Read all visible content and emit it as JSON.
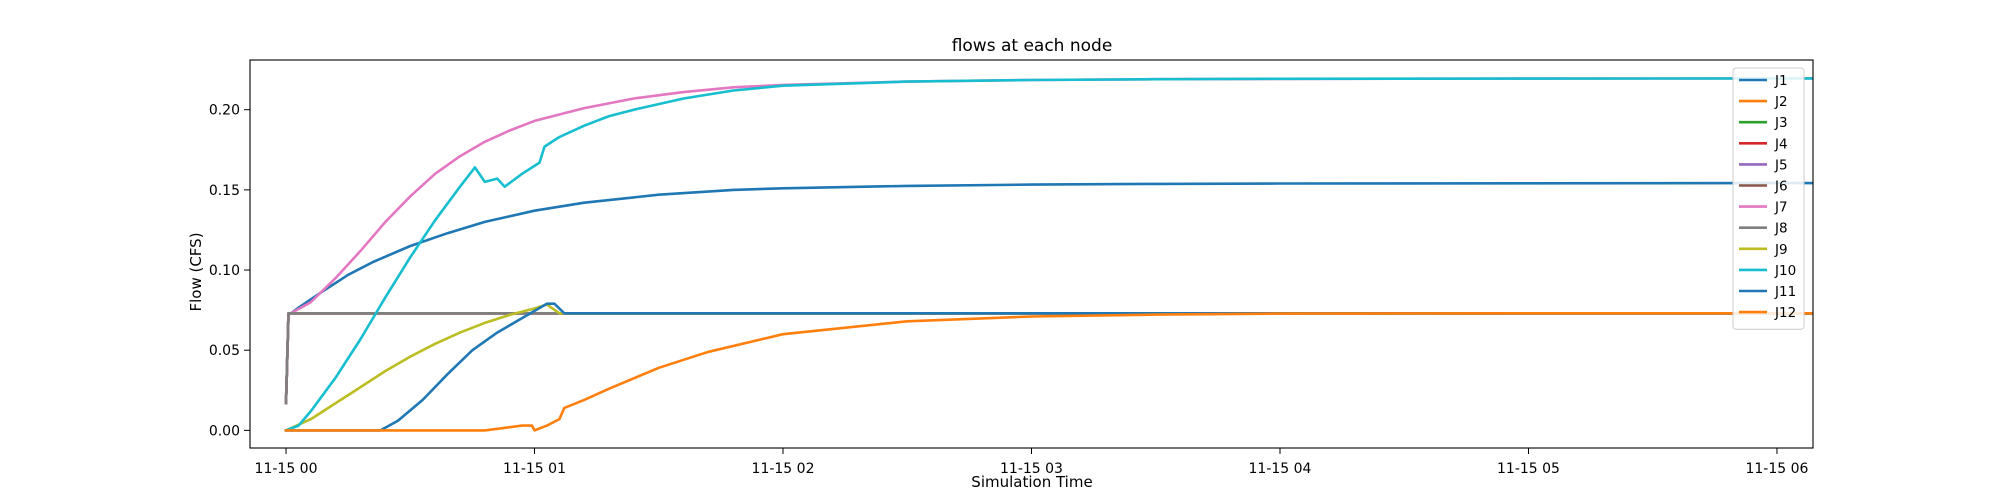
{
  "chart_data": {
    "type": "line",
    "title": "flows at each node",
    "xlabel": "Simulation Time",
    "ylabel": "Flow (CFS)",
    "x_unit": "hours after 11-15 00:00",
    "xlim": [
      -0.145,
      6.145
    ],
    "ylim": [
      -0.011,
      0.231
    ],
    "x_ticks": [
      {
        "value": 0,
        "label": "11-15 00"
      },
      {
        "value": 1,
        "label": "11-15 01"
      },
      {
        "value": 2,
        "label": "11-15 02"
      },
      {
        "value": 3,
        "label": "11-15 03"
      },
      {
        "value": 4,
        "label": "11-15 04"
      },
      {
        "value": 5,
        "label": "11-15 05"
      },
      {
        "value": 6,
        "label": "11-15 06"
      }
    ],
    "y_ticks": [
      {
        "value": 0.0,
        "label": "0.00"
      },
      {
        "value": 0.05,
        "label": "0.05"
      },
      {
        "value": 0.1,
        "label": "0.10"
      },
      {
        "value": 0.15,
        "label": "0.15"
      },
      {
        "value": 0.2,
        "label": "0.20"
      }
    ],
    "grid": false,
    "legend_position": "top-right",
    "series": [
      {
        "name": "J1",
        "color": "#1f77b4",
        "x": [
          0,
          0.01,
          0.02,
          0.05,
          0.15,
          0.25,
          0.35,
          0.5,
          0.65,
          0.8,
          1.0,
          1.2,
          1.5,
          1.8,
          2.0,
          2.5,
          3.0,
          3.5,
          4.0,
          5.0,
          6.0,
          6.145
        ],
        "y": [
          0.017,
          0.073,
          0.073,
          0.0765,
          0.087,
          0.097,
          0.105,
          0.115,
          0.123,
          0.13,
          0.137,
          0.142,
          0.147,
          0.15,
          0.151,
          0.1525,
          0.1533,
          0.1537,
          0.154,
          0.1541,
          0.1542,
          0.1542
        ]
      },
      {
        "name": "J2",
        "color": "#ff7f0e",
        "x": [
          0,
          0.01,
          0.02,
          6.145
        ],
        "y": [
          0.017,
          0.073,
          0.073,
          0.073
        ]
      },
      {
        "name": "J3",
        "color": "#2ca02c",
        "x": [
          0,
          0.01,
          0.02,
          6.145
        ],
        "y": [
          0.017,
          0.073,
          0.073,
          0.073
        ]
      },
      {
        "name": "J4",
        "color": "#d62728",
        "x": [
          0,
          0.01,
          0.02,
          6.145
        ],
        "y": [
          0.017,
          0.073,
          0.073,
          0.073
        ]
      },
      {
        "name": "J5",
        "color": "#9467bd",
        "x": [
          0,
          0.01,
          0.02,
          6.145
        ],
        "y": [
          0.017,
          0.073,
          0.073,
          0.073
        ]
      },
      {
        "name": "J6",
        "color": "#8c564b",
        "x": [
          0,
          0.01,
          0.02,
          6.145
        ],
        "y": [
          0.017,
          0.073,
          0.073,
          0.073
        ]
      },
      {
        "name": "J7",
        "color": "#e377c2",
        "x": [
          0,
          0.01,
          0.02,
          0.1,
          0.2,
          0.3,
          0.4,
          0.5,
          0.6,
          0.7,
          0.8,
          0.9,
          1.0,
          1.2,
          1.4,
          1.6,
          1.8,
          2.0,
          2.5,
          3.0,
          3.5,
          4.0,
          5.0,
          6.0,
          6.145
        ],
        "y": [
          0.017,
          0.073,
          0.073,
          0.08,
          0.095,
          0.112,
          0.13,
          0.146,
          0.16,
          0.171,
          0.18,
          0.187,
          0.193,
          0.201,
          0.207,
          0.211,
          0.214,
          0.2155,
          0.2175,
          0.2185,
          0.219,
          0.2192,
          0.2194,
          0.2195,
          0.2195
        ]
      },
      {
        "name": "J8",
        "color": "#7f7f7f",
        "x": [
          0,
          0.01,
          0.02,
          6.145
        ],
        "y": [
          0.017,
          0.073,
          0.073,
          0.073
        ]
      },
      {
        "name": "J9",
        "color": "#bcbd22",
        "x": [
          0,
          0.1,
          0.2,
          0.3,
          0.4,
          0.5,
          0.6,
          0.7,
          0.8,
          0.9,
          1.0,
          1.05,
          1.1,
          6.145
        ],
        "y": [
          0.0,
          0.007,
          0.017,
          0.027,
          0.037,
          0.046,
          0.054,
          0.061,
          0.067,
          0.072,
          0.076,
          0.0785,
          0.073,
          0.073
        ]
      },
      {
        "name": "J10",
        "color": "#17becf",
        "x": [
          0,
          0.05,
          0.1,
          0.2,
          0.3,
          0.4,
          0.5,
          0.6,
          0.7,
          0.76,
          0.8,
          0.85,
          0.88,
          0.95,
          1.02,
          1.04,
          1.1,
          1.2,
          1.3,
          1.4,
          1.6,
          1.8,
          2.0,
          2.5,
          3.0,
          3.5,
          4.0,
          5.0,
          6.0,
          6.145
        ],
        "y": [
          0.0,
          0.003,
          0.012,
          0.033,
          0.057,
          0.083,
          0.108,
          0.131,
          0.152,
          0.164,
          0.155,
          0.157,
          0.152,
          0.16,
          0.167,
          0.177,
          0.183,
          0.19,
          0.196,
          0.2,
          0.207,
          0.212,
          0.215,
          0.2175,
          0.2185,
          0.219,
          0.2193,
          0.2194,
          0.2195,
          0.2195
        ]
      },
      {
        "name": "J11",
        "color": "#1f77b4",
        "x": [
          0,
          0.38,
          0.45,
          0.55,
          0.65,
          0.75,
          0.85,
          0.95,
          1.05,
          1.08,
          1.12,
          6.145
        ],
        "y": [
          0.0,
          0.0,
          0.006,
          0.019,
          0.035,
          0.05,
          0.061,
          0.07,
          0.079,
          0.079,
          0.073,
          0.073
        ]
      },
      {
        "name": "J12",
        "color": "#ff7f0e",
        "x": [
          0,
          0.5,
          0.8,
          0.95,
          0.99,
          1.0,
          1.05,
          1.1,
          1.12,
          1.2,
          1.3,
          1.5,
          1.7,
          2.0,
          2.5,
          3.0,
          3.5,
          4.0,
          5.0,
          6.0,
          6.145
        ],
        "y": [
          0.0,
          0.0,
          0.0,
          0.003,
          0.003,
          0.0,
          0.003,
          0.007,
          0.014,
          0.019,
          0.026,
          0.039,
          0.049,
          0.06,
          0.068,
          0.071,
          0.0722,
          0.0728,
          0.073,
          0.073,
          0.073
        ]
      }
    ]
  }
}
